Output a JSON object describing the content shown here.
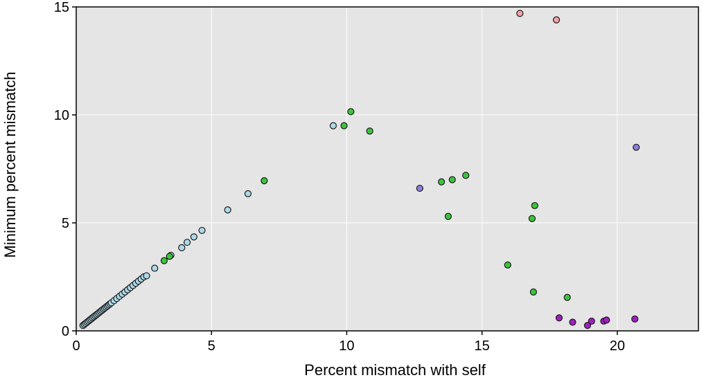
{
  "chart_data": {
    "type": "scatter",
    "title": "",
    "xlabel": "Percent mismatch with self",
    "ylabel": "Minimum percent mismatch",
    "xlim": [
      0,
      23
    ],
    "ylim": [
      0,
      15
    ],
    "x_ticks": [
      0,
      5,
      10,
      15,
      20
    ],
    "y_ticks": [
      0,
      5,
      10,
      15
    ],
    "grid": true,
    "background": "#e5e5e5",
    "gridline_color": "#ffffff",
    "series": [
      {
        "color": "#add8e6",
        "points": [
          [
            0.25,
            0.25
          ],
          [
            0.3,
            0.3
          ],
          [
            0.35,
            0.35
          ],
          [
            0.4,
            0.4
          ],
          [
            0.45,
            0.45
          ],
          [
            0.5,
            0.5
          ],
          [
            0.55,
            0.55
          ],
          [
            0.6,
            0.6
          ],
          [
            0.65,
            0.65
          ],
          [
            0.7,
            0.7
          ],
          [
            0.75,
            0.75
          ],
          [
            0.8,
            0.8
          ],
          [
            0.85,
            0.85
          ],
          [
            0.9,
            0.9
          ],
          [
            0.95,
            0.95
          ],
          [
            1.0,
            1.0
          ],
          [
            1.05,
            1.05
          ],
          [
            1.1,
            1.1
          ],
          [
            1.15,
            1.15
          ],
          [
            1.2,
            1.2
          ],
          [
            1.25,
            1.25
          ],
          [
            1.3,
            1.3
          ],
          [
            1.4,
            1.4
          ],
          [
            1.5,
            1.5
          ],
          [
            1.6,
            1.6
          ],
          [
            1.7,
            1.7
          ],
          [
            1.8,
            1.8
          ],
          [
            1.9,
            1.9
          ],
          [
            2.0,
            2.0
          ],
          [
            2.1,
            2.1
          ],
          [
            2.2,
            2.2
          ],
          [
            2.3,
            2.3
          ],
          [
            2.4,
            2.4
          ],
          [
            2.5,
            2.5
          ],
          [
            2.6,
            2.55
          ],
          [
            2.9,
            2.9
          ],
          [
            3.5,
            3.5
          ],
          [
            3.9,
            3.85
          ],
          [
            4.1,
            4.1
          ],
          [
            4.35,
            4.35
          ],
          [
            4.65,
            4.65
          ],
          [
            5.6,
            5.6
          ],
          [
            6.35,
            6.35
          ],
          [
            9.5,
            9.5
          ]
        ]
      },
      {
        "color": "#3cc43c",
        "points": [
          [
            3.25,
            3.25
          ],
          [
            3.45,
            3.45
          ],
          [
            6.95,
            6.95
          ],
          [
            9.9,
            9.5
          ],
          [
            10.15,
            10.15
          ],
          [
            10.85,
            9.25
          ],
          [
            13.5,
            6.9
          ],
          [
            13.9,
            7.0
          ],
          [
            14.4,
            7.2
          ],
          [
            13.75,
            5.3
          ],
          [
            16.95,
            5.8
          ],
          [
            16.85,
            5.2
          ],
          [
            15.95,
            3.05
          ],
          [
            16.9,
            1.8
          ],
          [
            18.15,
            1.55
          ]
        ]
      },
      {
        "color": "#f4a0a8",
        "points": [
          [
            16.4,
            14.7
          ],
          [
            17.75,
            14.4
          ]
        ]
      },
      {
        "color": "#8a7ee0",
        "points": [
          [
            12.7,
            6.6
          ],
          [
            20.7,
            8.5
          ]
        ]
      },
      {
        "color": "#a020c0",
        "points": [
          [
            17.85,
            0.6
          ],
          [
            18.35,
            0.4
          ],
          [
            18.9,
            0.25
          ],
          [
            19.05,
            0.45
          ],
          [
            19.5,
            0.45
          ],
          [
            19.6,
            0.5
          ],
          [
            20.65,
            0.55
          ]
        ]
      }
    ]
  }
}
